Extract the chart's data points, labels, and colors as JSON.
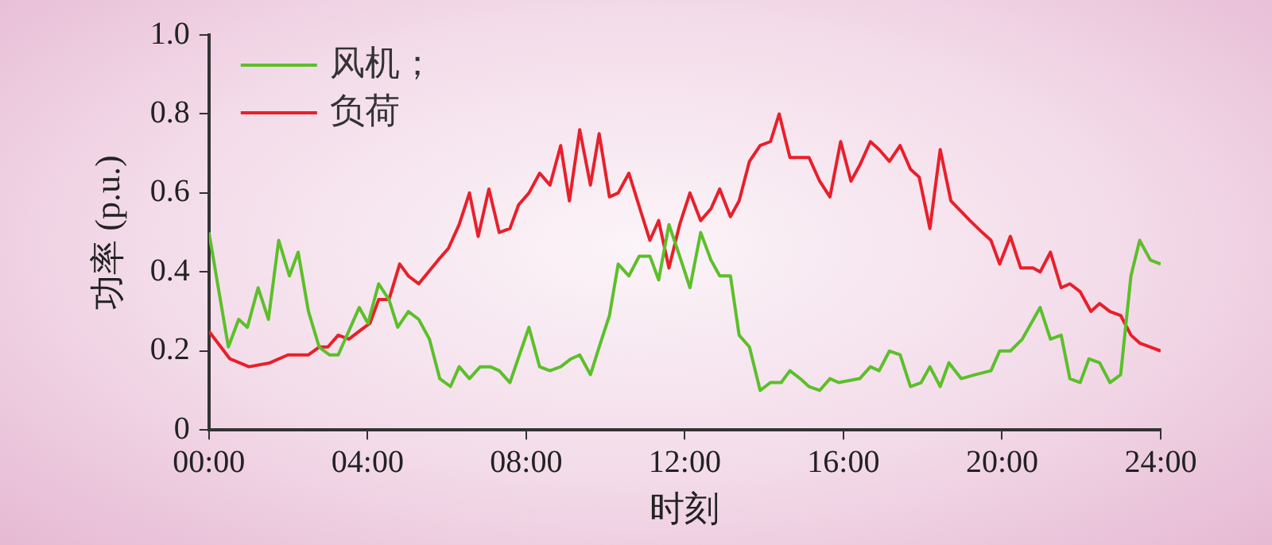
{
  "chart_data": {
    "type": "line",
    "xlabel": "时刻",
    "ylabel": "功率 (p.u.)",
    "xlim": [
      0,
      24
    ],
    "xticks": [
      {
        "value": 0,
        "label": "00:00"
      },
      {
        "value": 4,
        "label": "04:00"
      },
      {
        "value": 8,
        "label": "08:00"
      },
      {
        "value": 12,
        "label": "12:00"
      },
      {
        "value": 16,
        "label": "16:00"
      },
      {
        "value": 20,
        "label": "20:00"
      },
      {
        "value": 24,
        "label": "24:00"
      }
    ],
    "ylim": [
      0,
      1
    ],
    "yticks": [
      0,
      0.2,
      0.4,
      0.6,
      0.8,
      {
        "value": 1,
        "label": "1.0"
      }
    ],
    "legend": "top left",
    "marker": "none",
    "line_style": "solid",
    "series": [
      {
        "name": "风机；",
        "color": "#5cbf2a",
        "x": [
          0,
          0.49,
          0.75,
          0.97,
          1.24,
          1.5,
          1.76,
          2.03,
          2.25,
          2.51,
          2.78,
          3.04,
          3.26,
          3.79,
          4.01,
          4.28,
          4.54,
          4.76,
          5.03,
          5.29,
          5.56,
          5.82,
          6.09,
          6.31,
          6.57,
          6.84,
          7.1,
          7.32,
          7.59,
          8.07,
          8.34,
          8.6,
          8.87,
          9.13,
          9.35,
          9.62,
          9.84,
          10.1,
          10.32,
          10.59,
          10.85,
          11.12,
          11.34,
          11.6,
          11.87,
          12.13,
          12.4,
          12.66,
          12.88,
          13.15,
          13.37,
          13.63,
          13.9,
          14.16,
          14.43,
          14.65,
          14.91,
          15.13,
          15.4,
          15.66,
          15.88,
          16.41,
          16.68,
          16.9,
          17.16,
          17.43,
          17.69,
          17.96,
          18.18,
          18.44,
          18.66,
          18.97,
          19.32,
          19.72,
          19.94,
          20.21,
          20.51,
          20.96,
          21.22,
          21.49,
          21.71,
          21.97,
          22.19,
          22.46,
          22.72,
          22.99,
          23.25,
          23.47,
          23.74,
          24
        ],
        "values": [
          0.5,
          0.21,
          0.28,
          0.26,
          0.36,
          0.28,
          0.48,
          0.39,
          0.45,
          0.3,
          0.21,
          0.19,
          0.19,
          0.31,
          0.27,
          0.37,
          0.33,
          0.26,
          0.3,
          0.28,
          0.23,
          0.13,
          0.11,
          0.16,
          0.13,
          0.16,
          0.16,
          0.15,
          0.12,
          0.26,
          0.16,
          0.15,
          0.16,
          0.18,
          0.19,
          0.14,
          0.21,
          0.29,
          0.42,
          0.39,
          0.44,
          0.44,
          0.38,
          0.52,
          0.44,
          0.36,
          0.5,
          0.43,
          0.39,
          0.39,
          0.24,
          0.21,
          0.1,
          0.12,
          0.12,
          0.15,
          0.13,
          0.11,
          0.1,
          0.13,
          0.12,
          0.13,
          0.16,
          0.15,
          0.2,
          0.19,
          0.11,
          0.12,
          0.16,
          0.11,
          0.17,
          0.13,
          0.14,
          0.15,
          0.2,
          0.2,
          0.23,
          0.31,
          0.23,
          0.24,
          0.13,
          0.12,
          0.18,
          0.17,
          0.12,
          0.14,
          0.39,
          0.48,
          0.43,
          0.42
        ]
      },
      {
        "name": "负荷",
        "color": "#e8202a",
        "x": [
          0,
          0.53,
          1.01,
          1.54,
          1.99,
          2.51,
          2.78,
          3,
          3.26,
          3.53,
          3.79,
          4.06,
          4.28,
          4.54,
          4.81,
          5.03,
          5.29,
          5.78,
          6.04,
          6.31,
          6.57,
          6.79,
          7.06,
          7.32,
          7.59,
          7.81,
          8.07,
          8.34,
          8.6,
          8.87,
          9.09,
          9.35,
          9.62,
          9.84,
          10.1,
          10.32,
          10.59,
          10.9,
          11.12,
          11.34,
          11.6,
          11.87,
          12.13,
          12.4,
          12.66,
          12.88,
          13.15,
          13.37,
          13.63,
          13.9,
          14.16,
          14.38,
          14.65,
          14.91,
          15.13,
          15.4,
          15.66,
          15.93,
          16.19,
          16.41,
          16.68,
          16.9,
          17.16,
          17.43,
          17.69,
          17.91,
          18.18,
          18.44,
          18.71,
          19.19,
          19.5,
          19.72,
          19.94,
          20.21,
          20.47,
          20.78,
          20.96,
          21.22,
          21.49,
          21.71,
          21.97,
          22.24,
          22.46,
          22.72,
          22.99,
          23.25,
          23.47,
          23.74,
          24
        ],
        "values": [
          0.25,
          0.18,
          0.16,
          0.17,
          0.19,
          0.19,
          0.21,
          0.21,
          0.24,
          0.23,
          0.25,
          0.27,
          0.33,
          0.33,
          0.42,
          0.39,
          0.37,
          0.43,
          0.46,
          0.52,
          0.6,
          0.49,
          0.61,
          0.5,
          0.51,
          0.57,
          0.6,
          0.65,
          0.62,
          0.72,
          0.58,
          0.76,
          0.62,
          0.75,
          0.59,
          0.6,
          0.65,
          0.55,
          0.48,
          0.53,
          0.41,
          0.52,
          0.6,
          0.53,
          0.56,
          0.61,
          0.54,
          0.58,
          0.68,
          0.72,
          0.73,
          0.8,
          0.69,
          0.69,
          0.69,
          0.63,
          0.59,
          0.73,
          0.63,
          0.67,
          0.73,
          0.71,
          0.68,
          0.72,
          0.66,
          0.64,
          0.51,
          0.71,
          0.58,
          0.53,
          0.5,
          0.48,
          0.42,
          0.49,
          0.41,
          0.41,
          0.4,
          0.45,
          0.36,
          0.37,
          0.35,
          0.3,
          0.32,
          0.3,
          0.29,
          0.24,
          0.22,
          0.21,
          0.2
        ]
      }
    ]
  }
}
